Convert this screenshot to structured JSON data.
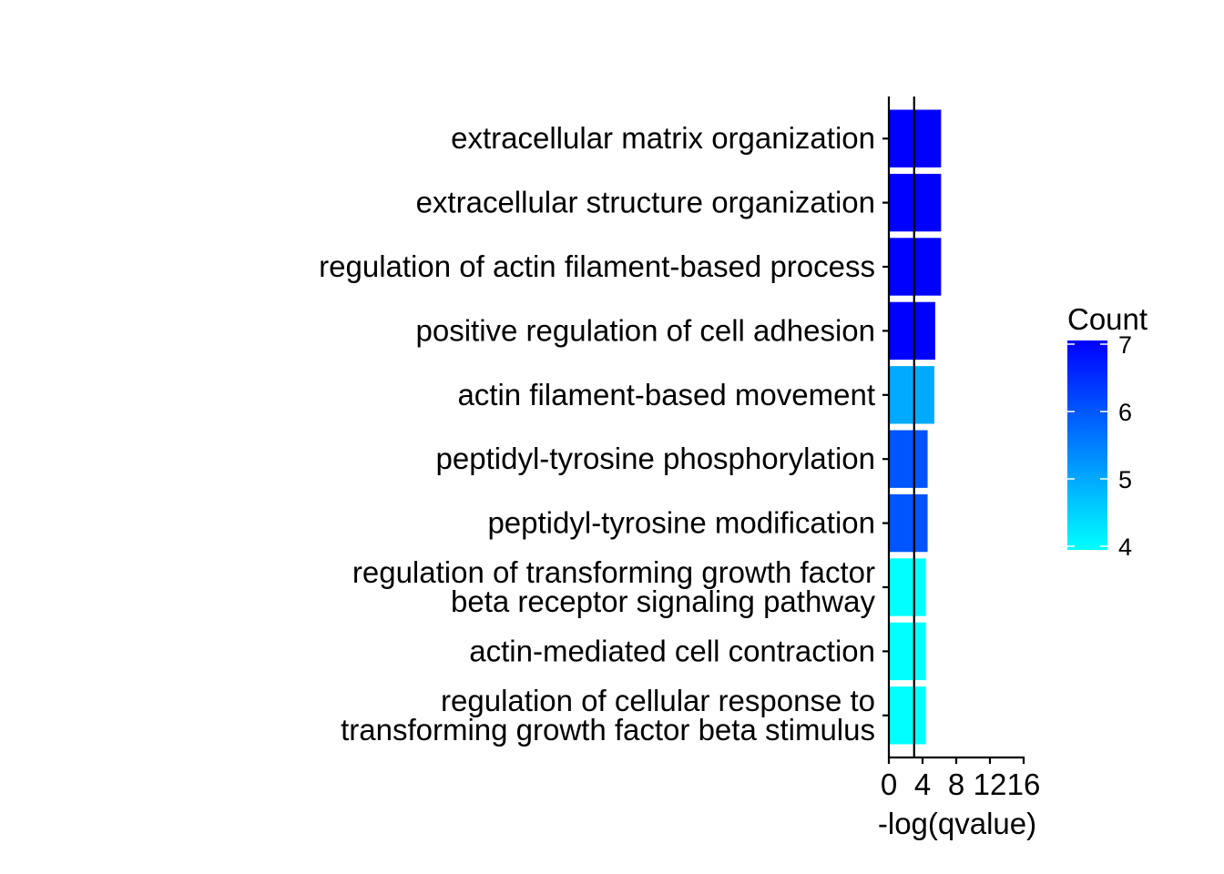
{
  "chart_data": {
    "type": "bar",
    "orientation": "horizontal",
    "categories": [
      [
        "extracellular matrix organization"
      ],
      [
        "extracellular structure organization"
      ],
      [
        "regulation of actin filament-based process"
      ],
      [
        "positive regulation of cell adhesion"
      ],
      [
        "actin filament-based movement"
      ],
      [
        "peptidyl-tyrosine phosphorylation"
      ],
      [
        "peptidyl-tyrosine modification"
      ],
      [
        "regulation of transforming growth factor",
        "beta receptor signaling pathway"
      ],
      [
        "actin-mediated cell contraction"
      ],
      [
        "regulation of cellular response to",
        "transforming growth factor beta stimulus"
      ]
    ],
    "values": [
      6.2,
      6.2,
      6.2,
      5.5,
      5.4,
      4.6,
      4.6,
      4.4,
      4.4,
      4.4
    ],
    "counts": [
      7,
      7,
      7,
      7,
      5,
      6,
      6,
      4,
      4,
      4
    ],
    "reference_line": 3,
    "xlabel": "-log(qvalue)",
    "ylabel": "",
    "xlim": [
      0,
      16
    ],
    "x_ticks": [
      0,
      4,
      8,
      12,
      16
    ],
    "legend": {
      "title": "Count",
      "ticks": [
        4,
        5,
        6,
        7
      ],
      "range": [
        4,
        7
      ],
      "low_color": "#00FFFF",
      "high_color": "#0000FF",
      "placement": "right"
    },
    "grid": false
  }
}
